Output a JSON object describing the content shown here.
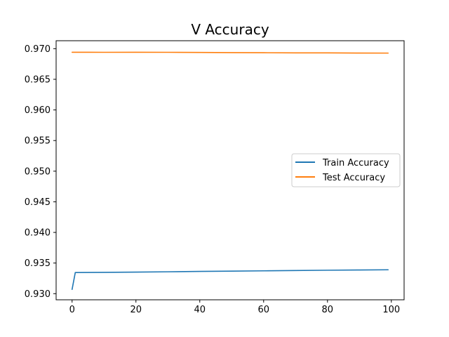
{
  "chart_data": {
    "type": "line",
    "title": "V Accuracy",
    "xlabel": "",
    "ylabel": "",
    "xlim": [
      -5,
      104
    ],
    "ylim": [
      0.929,
      0.9713
    ],
    "x_ticks": [
      0,
      20,
      40,
      60,
      80,
      100
    ],
    "x_tick_labels": [
      "0",
      "20",
      "40",
      "60",
      "80",
      "100"
    ],
    "y_ticks": [
      0.93,
      0.935,
      0.94,
      0.945,
      0.95,
      0.955,
      0.96,
      0.965,
      0.97
    ],
    "y_tick_labels": [
      "0.930",
      "0.935",
      "0.940",
      "0.945",
      "0.950",
      "0.955",
      "0.960",
      "0.965",
      "0.970"
    ],
    "grid": false,
    "legend_position": "center-right",
    "series": [
      {
        "name": "Train Accuracy",
        "color": "#1f77b4",
        "x": [
          0,
          1,
          10,
          20,
          30,
          40,
          50,
          60,
          70,
          80,
          90,
          99
        ],
        "y": [
          0.9307,
          0.93345,
          0.93348,
          0.93352,
          0.93357,
          0.93363,
          0.93368,
          0.93373,
          0.93378,
          0.93383,
          0.93387,
          0.9339
        ]
      },
      {
        "name": "Test Accuracy",
        "color": "#ff7f0e",
        "x": [
          0,
          10,
          20,
          30,
          40,
          50,
          60,
          70,
          80,
          90,
          99
        ],
        "y": [
          0.96942,
          0.96941,
          0.96942,
          0.96941,
          0.96939,
          0.96936,
          0.96934,
          0.96932,
          0.96931,
          0.96929,
          0.96928
        ]
      }
    ]
  }
}
